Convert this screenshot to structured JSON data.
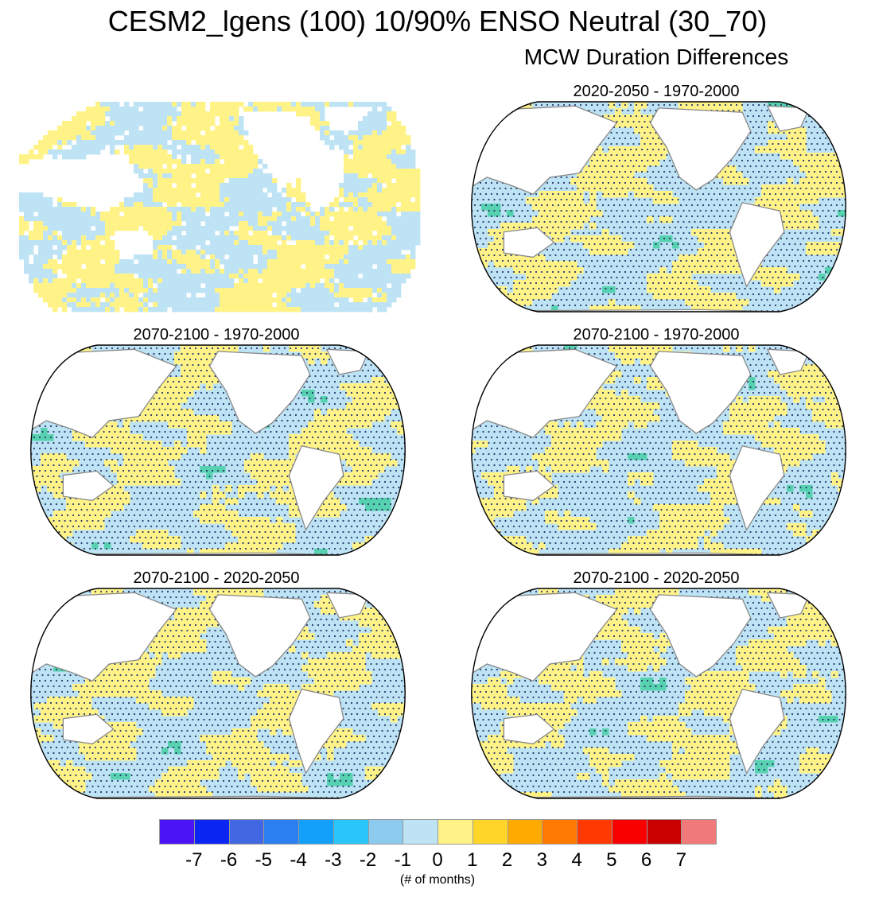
{
  "title": "CESM2_lgens (100) 10/90% ENSO Neutral (30_70)",
  "subtitle": "MCW Duration Differences",
  "panels": [
    {
      "title": "",
      "style": "unprojected"
    },
    {
      "title": "2020-2050 - 1970-2000",
      "style": "robinson"
    },
    {
      "title": "2070-2100 - 1970-2000",
      "style": "robinson"
    },
    {
      "title": "2070-2100 - 1970-2000",
      "style": "robinson"
    },
    {
      "title": "2070-2100 - 2020-2050",
      "style": "robinson"
    },
    {
      "title": "2070-2100 - 2020-2050",
      "style": "robinson"
    }
  ],
  "legend": {
    "colors": [
      "#4b14f5",
      "#0b26f2",
      "#4167e3",
      "#2b7ff0",
      "#12a0fb",
      "#2ac6f9",
      "#8ccbee",
      "#bde3f5",
      "#fff388",
      "#ffd52a",
      "#ffaa00",
      "#ff7a00",
      "#ff3a00",
      "#f90000",
      "#c80000",
      "#f07a7a"
    ],
    "ticks": [
      "-7",
      "-6",
      "-5",
      "-4",
      "-3",
      "-2",
      "-1",
      "0",
      "1",
      "2",
      "3",
      "4",
      "5",
      "6",
      "7"
    ],
    "units": "(# of months)"
  },
  "map_colors": {
    "ocean_neg": "#bde3f5",
    "ocean_pos": "#fff388",
    "land": "#ffffff",
    "coast": "#888888",
    "stipple": "#2a3a6a",
    "strong": "#57d2b0"
  }
}
